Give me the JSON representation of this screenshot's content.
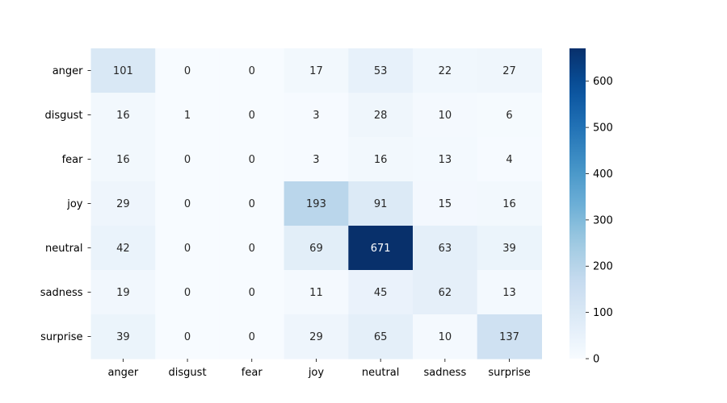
{
  "chart_data": {
    "type": "heatmap",
    "title": "",
    "xlabel": "",
    "ylabel": "",
    "x_categories": [
      "anger",
      "disgust",
      "fear",
      "joy",
      "neutral",
      "sadness",
      "surprise"
    ],
    "y_categories": [
      "anger",
      "disgust",
      "fear",
      "joy",
      "neutral",
      "sadness",
      "surprise"
    ],
    "values": [
      [
        101,
        0,
        0,
        17,
        53,
        22,
        27
      ],
      [
        16,
        1,
        0,
        3,
        28,
        10,
        6
      ],
      [
        16,
        0,
        0,
        3,
        16,
        13,
        4
      ],
      [
        29,
        0,
        0,
        193,
        91,
        15,
        16
      ],
      [
        42,
        0,
        0,
        69,
        671,
        63,
        39
      ],
      [
        19,
        0,
        0,
        11,
        45,
        62,
        13
      ],
      [
        39,
        0,
        0,
        29,
        65,
        10,
        137
      ]
    ],
    "colormap": "Blues",
    "colorbar": {
      "min": 0,
      "max": 671,
      "ticks": [
        0,
        100,
        200,
        300,
        400,
        500,
        600
      ]
    },
    "grid": false
  }
}
